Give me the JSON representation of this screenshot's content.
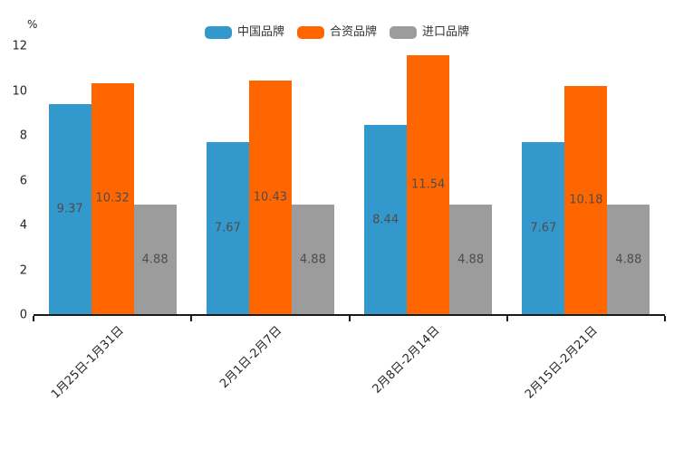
{
  "chart_data": {
    "type": "bar",
    "title": "",
    "unit_label": "%",
    "categories": [
      "1月25日-1月31日",
      "2月1日-2月7日",
      "2月8日-2月14日",
      "2月15日-2月21日"
    ],
    "series": [
      {
        "name": "中国品牌",
        "color": "#3398cc",
        "values": [
          9.37,
          7.67,
          8.44,
          7.67
        ]
      },
      {
        "name": "合资品牌",
        "color": "#ff6600",
        "values": [
          10.32,
          10.43,
          11.54,
          10.18
        ]
      },
      {
        "name": "进口品牌",
        "color": "#9c9c9c",
        "values": [
          4.88,
          4.88,
          4.88,
          4.88
        ]
      }
    ],
    "value_labels_shown": true,
    "xlabel": "",
    "ylabel": "%",
    "ylim": [
      0,
      12
    ],
    "yticks": [
      0,
      2,
      4,
      6,
      8,
      10,
      12
    ],
    "grid": false,
    "legend_position": "top",
    "axis_color": "#1a1a1a",
    "value_label_color": "#4d4d4d",
    "tick_label_color": "#262626"
  }
}
